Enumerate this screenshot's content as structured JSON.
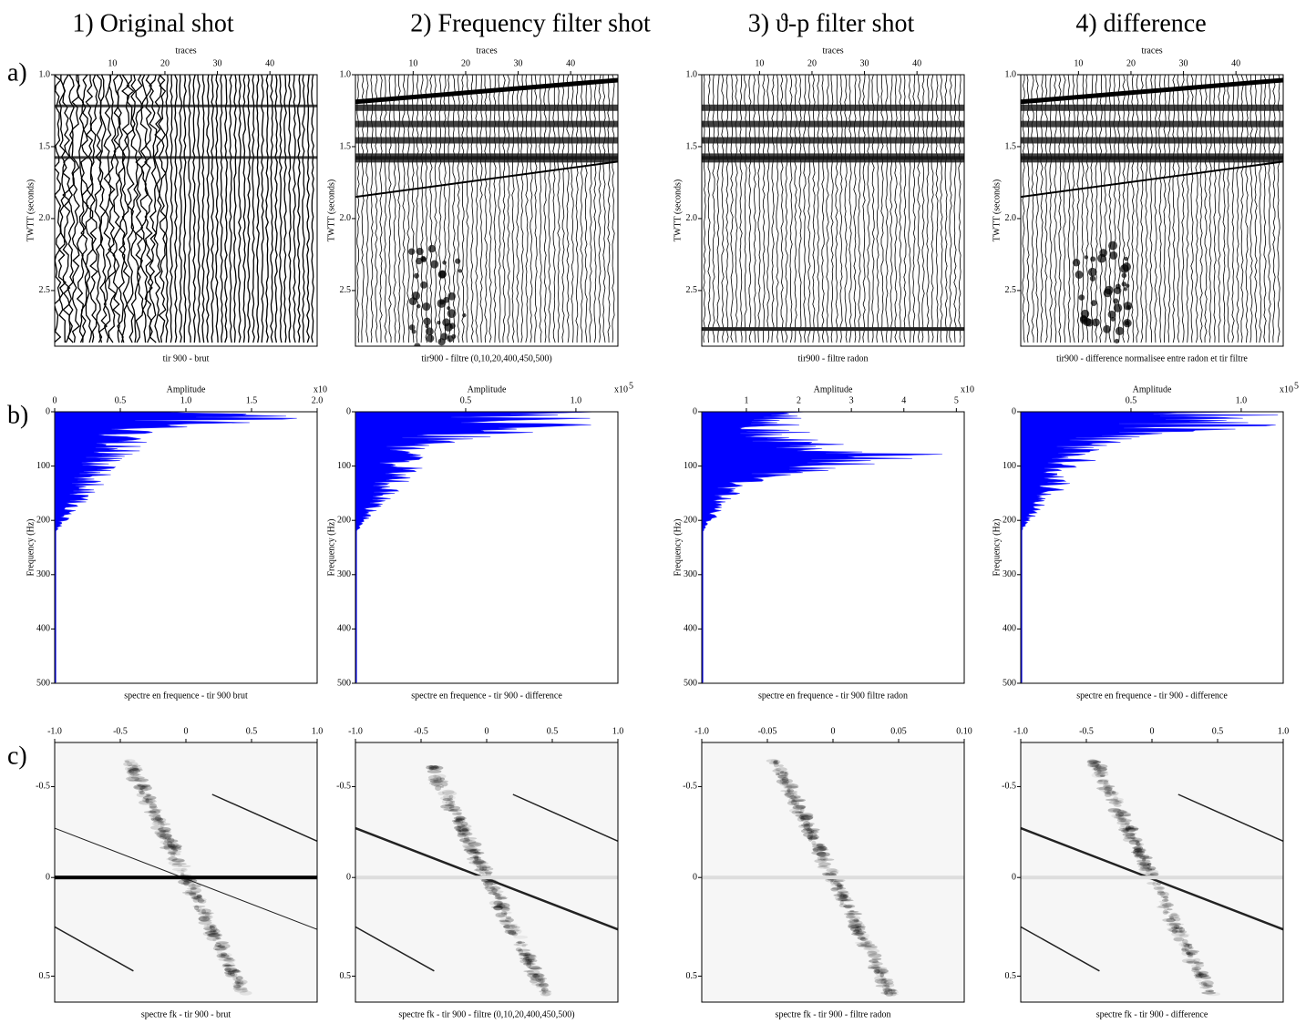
{
  "columns": [
    {
      "title": "1) Original shot"
    },
    {
      "title": "2) Frequency filter shot"
    },
    {
      "title": "3) ϑ-p filter shot"
    },
    {
      "title": "4) difference"
    }
  ],
  "rows": [
    {
      "label": "a)",
      "panels": [
        {
          "x_axis_label": "traces",
          "x_ticks": [
            "10",
            "20",
            "30",
            "40"
          ],
          "y_axis_label": "TWTT (seconds)",
          "y_ticks": [
            "1.0",
            "1.5",
            "2.0",
            "2.5"
          ],
          "caption": "tir 900 - brut"
        },
        {
          "x_axis_label": "traces",
          "x_ticks": [
            "10",
            "20",
            "30",
            "40"
          ],
          "y_axis_label": "TWTT (seconds)",
          "y_ticks": [
            "1.0",
            "1.5",
            "2.0",
            "2.5"
          ],
          "caption": "tir900 - filtre (0,10,20,400,450,500)"
        },
        {
          "x_axis_label": "traces",
          "x_ticks": [
            "10",
            "20",
            "30",
            "40"
          ],
          "y_axis_label": "TWTT (seconds)",
          "y_ticks": [
            "1.0",
            "1.5",
            "2.0",
            "2.5"
          ],
          "caption": "tir900 - filtre radon"
        },
        {
          "x_axis_label": "traces",
          "x_ticks": [
            "10",
            "20",
            "30",
            "40"
          ],
          "y_axis_label": "TWTT (seconds)",
          "y_ticks": [
            "1.0",
            "1.5",
            "2.0",
            "2.5"
          ],
          "caption": "tir900 - difference normalisee entre radon et tir filtre"
        }
      ]
    },
    {
      "label": "b)",
      "panels": [
        {
          "x_axis_label": "Amplitude",
          "x_ticks": [
            "0",
            "0.5",
            "1.0",
            "1.5",
            "2.0"
          ],
          "multiplier": "x10",
          "y_axis_label": "Frequency (Hz)",
          "y_ticks": [
            "0",
            "100",
            "200",
            "300",
            "400",
            "500"
          ],
          "caption": "spectre en frequence - tir 900 brut"
        },
        {
          "x_axis_label": "Amplitude",
          "x_ticks": [
            "0.5",
            "1.0"
          ],
          "multiplier": "x10",
          "exponent": "5",
          "y_axis_label": "Frequency (Hz)",
          "y_ticks": [
            "0",
            "100",
            "200",
            "300",
            "400",
            "500"
          ],
          "caption": "spectre en frequence - tir 900 - difference"
        },
        {
          "x_axis_label": "Amplitude",
          "x_ticks": [
            "1",
            "2",
            "3",
            "4",
            "5"
          ],
          "multiplier": "x10",
          "y_axis_label": "Frequency (Hz)",
          "y_ticks": [
            "0",
            "100",
            "200",
            "300",
            "400",
            "500"
          ],
          "caption": "spectre en frequence - tir 900 filtre radon"
        },
        {
          "x_axis_label": "Amplitude",
          "x_ticks": [
            "0.5",
            "1.0"
          ],
          "multiplier": "x10",
          "exponent": "5",
          "y_axis_label": "Frequency (Hz)",
          "y_ticks": [
            "0",
            "100",
            "200",
            "300",
            "400",
            "500"
          ],
          "caption": "spectre en frequence - tir 900 - difference"
        }
      ]
    },
    {
      "label": "c)",
      "panels": [
        {
          "x_ticks": [
            "-1.0",
            "-0.5",
            "0",
            "0.5",
            "1.0"
          ],
          "y_ticks": [
            "-0.5",
            "0",
            "0.5"
          ],
          "caption": "spectre fk - tir 900 - brut"
        },
        {
          "x_ticks": [
            "-1.0",
            "-0.5",
            "0",
            "0.5",
            "1.0"
          ],
          "y_ticks": [
            "-0.5",
            "0",
            "0.5"
          ],
          "caption": "spectre fk - tir 900 - filtre (0,10,20,400,450,500)"
        },
        {
          "x_ticks": [
            "-1.0",
            "-0.05",
            "0",
            "0.05",
            "0.10"
          ],
          "y_ticks": [
            "-0.5",
            "0",
            "0.5"
          ],
          "caption": "spectre fk - tir 900 - filtre radon"
        },
        {
          "x_ticks": [
            "-1.0",
            "-0.5",
            "0",
            "0.5",
            "1.0"
          ],
          "y_ticks": [
            "-0.5",
            "0",
            "0.5"
          ],
          "caption": "spectre fk - tir 900 - difference"
        }
      ]
    }
  ]
}
